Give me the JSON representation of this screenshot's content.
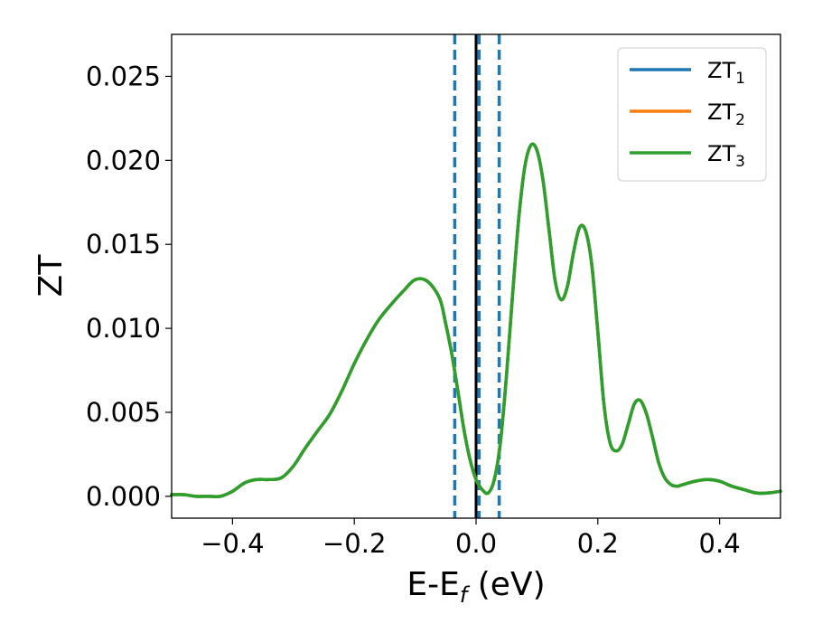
{
  "chart_data": {
    "type": "line",
    "title": "",
    "xlabel_main": "E-E",
    "xlabel_sub": "f",
    "xlabel_tail": " (eV)",
    "ylabel": "ZT",
    "xlim": [
      -0.5,
      0.5
    ],
    "ylim": [
      -0.0013,
      0.0275
    ],
    "xticks": [
      -0.4,
      -0.2,
      0.0,
      0.2,
      0.4
    ],
    "xtick_labels": [
      "−0.4",
      "−0.2",
      "0.0",
      "0.2",
      "0.4"
    ],
    "yticks": [
      0.0,
      0.005,
      0.01,
      0.015,
      0.02,
      0.025
    ],
    "ytick_labels": [
      "0.000",
      "0.005",
      "0.010",
      "0.015",
      "0.020",
      "0.025"
    ],
    "grid": false,
    "legend_position": "top-right",
    "vlines": [
      {
        "x": -0.035,
        "style": "dashed",
        "color": "#1f77b4"
      },
      {
        "x": 0.0,
        "style": "solid",
        "color": "#000000"
      },
      {
        "x": 0.005,
        "style": "dashed",
        "color": "#1f77b4"
      },
      {
        "x": 0.038,
        "style": "dashed",
        "color": "#1f77b4"
      }
    ],
    "x": [
      -0.5,
      -0.48,
      -0.46,
      -0.44,
      -0.42,
      -0.4,
      -0.38,
      -0.36,
      -0.34,
      -0.32,
      -0.3,
      -0.28,
      -0.26,
      -0.24,
      -0.22,
      -0.2,
      -0.18,
      -0.16,
      -0.14,
      -0.12,
      -0.1,
      -0.08,
      -0.06,
      -0.05,
      -0.04,
      -0.03,
      -0.02,
      -0.01,
      0.0,
      0.01,
      0.02,
      0.03,
      0.04,
      0.05,
      0.06,
      0.07,
      0.08,
      0.09,
      0.1,
      0.11,
      0.12,
      0.13,
      0.14,
      0.15,
      0.16,
      0.17,
      0.18,
      0.19,
      0.2,
      0.21,
      0.22,
      0.23,
      0.24,
      0.25,
      0.26,
      0.27,
      0.28,
      0.29,
      0.3,
      0.31,
      0.32,
      0.33,
      0.34,
      0.36,
      0.38,
      0.4,
      0.42,
      0.44,
      0.46,
      0.48,
      0.5
    ],
    "series": [
      {
        "name": "ZT₁",
        "label_main": "ZT",
        "label_sub": "1",
        "color": "#1f77b4",
        "values": [
          0.0001,
          0.0001,
          0.0,
          0.0,
          0.0,
          0.0003,
          0.0008,
          0.001,
          0.001,
          0.0011,
          0.0018,
          0.0029,
          0.0039,
          0.0049,
          0.0063,
          0.0079,
          0.0093,
          0.0105,
          0.0114,
          0.0122,
          0.0129,
          0.0128,
          0.0118,
          0.0103,
          0.0085,
          0.0063,
          0.004,
          0.0022,
          0.001,
          0.0004,
          0.0002,
          0.001,
          0.0032,
          0.0072,
          0.012,
          0.0165,
          0.0196,
          0.0209,
          0.0206,
          0.0188,
          0.0158,
          0.0128,
          0.0117,
          0.0125,
          0.0145,
          0.016,
          0.0158,
          0.0138,
          0.0098,
          0.0055,
          0.0032,
          0.0027,
          0.0031,
          0.0043,
          0.0055,
          0.0057,
          0.0049,
          0.0035,
          0.002,
          0.0011,
          0.0007,
          0.0006,
          0.0007,
          0.0009,
          0.001,
          0.0009,
          0.0006,
          0.0004,
          0.0002,
          0.0002,
          0.0003
        ]
      },
      {
        "name": "ZT₂",
        "label_main": "ZT",
        "label_sub": "2",
        "color": "#ff7f0e",
        "values": [
          0.0001,
          0.0001,
          0.0,
          0.0,
          0.0,
          0.0003,
          0.0008,
          0.001,
          0.001,
          0.0011,
          0.0018,
          0.0029,
          0.0039,
          0.0049,
          0.0063,
          0.0079,
          0.0093,
          0.0105,
          0.0114,
          0.0122,
          0.0129,
          0.0128,
          0.0118,
          0.0103,
          0.0085,
          0.0063,
          0.004,
          0.0022,
          0.001,
          0.0004,
          0.0002,
          0.001,
          0.0032,
          0.0072,
          0.012,
          0.0165,
          0.0196,
          0.0209,
          0.0206,
          0.0188,
          0.0158,
          0.0128,
          0.0117,
          0.0125,
          0.0145,
          0.016,
          0.0158,
          0.0138,
          0.0098,
          0.0055,
          0.0032,
          0.0027,
          0.0031,
          0.0043,
          0.0055,
          0.0057,
          0.0049,
          0.0035,
          0.002,
          0.0011,
          0.0007,
          0.0006,
          0.0007,
          0.0009,
          0.001,
          0.0009,
          0.0006,
          0.0004,
          0.0002,
          0.0002,
          0.0003
        ]
      },
      {
        "name": "ZT₃",
        "label_main": "ZT",
        "label_sub": "3",
        "color": "#2ca02c",
        "values": [
          0.0001,
          0.0001,
          0.0,
          0.0,
          0.0,
          0.0003,
          0.0008,
          0.001,
          0.001,
          0.0011,
          0.0018,
          0.0029,
          0.0039,
          0.0049,
          0.0063,
          0.0079,
          0.0093,
          0.0105,
          0.0114,
          0.0122,
          0.0129,
          0.0128,
          0.0118,
          0.0103,
          0.0085,
          0.0063,
          0.004,
          0.0022,
          0.001,
          0.0004,
          0.0002,
          0.001,
          0.0032,
          0.0072,
          0.012,
          0.0165,
          0.0196,
          0.0209,
          0.0206,
          0.0188,
          0.0158,
          0.0128,
          0.0117,
          0.0125,
          0.0145,
          0.016,
          0.0158,
          0.0138,
          0.0098,
          0.0055,
          0.0032,
          0.0027,
          0.0031,
          0.0043,
          0.0055,
          0.0057,
          0.0049,
          0.0035,
          0.002,
          0.0011,
          0.0007,
          0.0006,
          0.0007,
          0.0009,
          0.001,
          0.0009,
          0.0006,
          0.0004,
          0.0002,
          0.0002,
          0.0003
        ]
      }
    ]
  }
}
